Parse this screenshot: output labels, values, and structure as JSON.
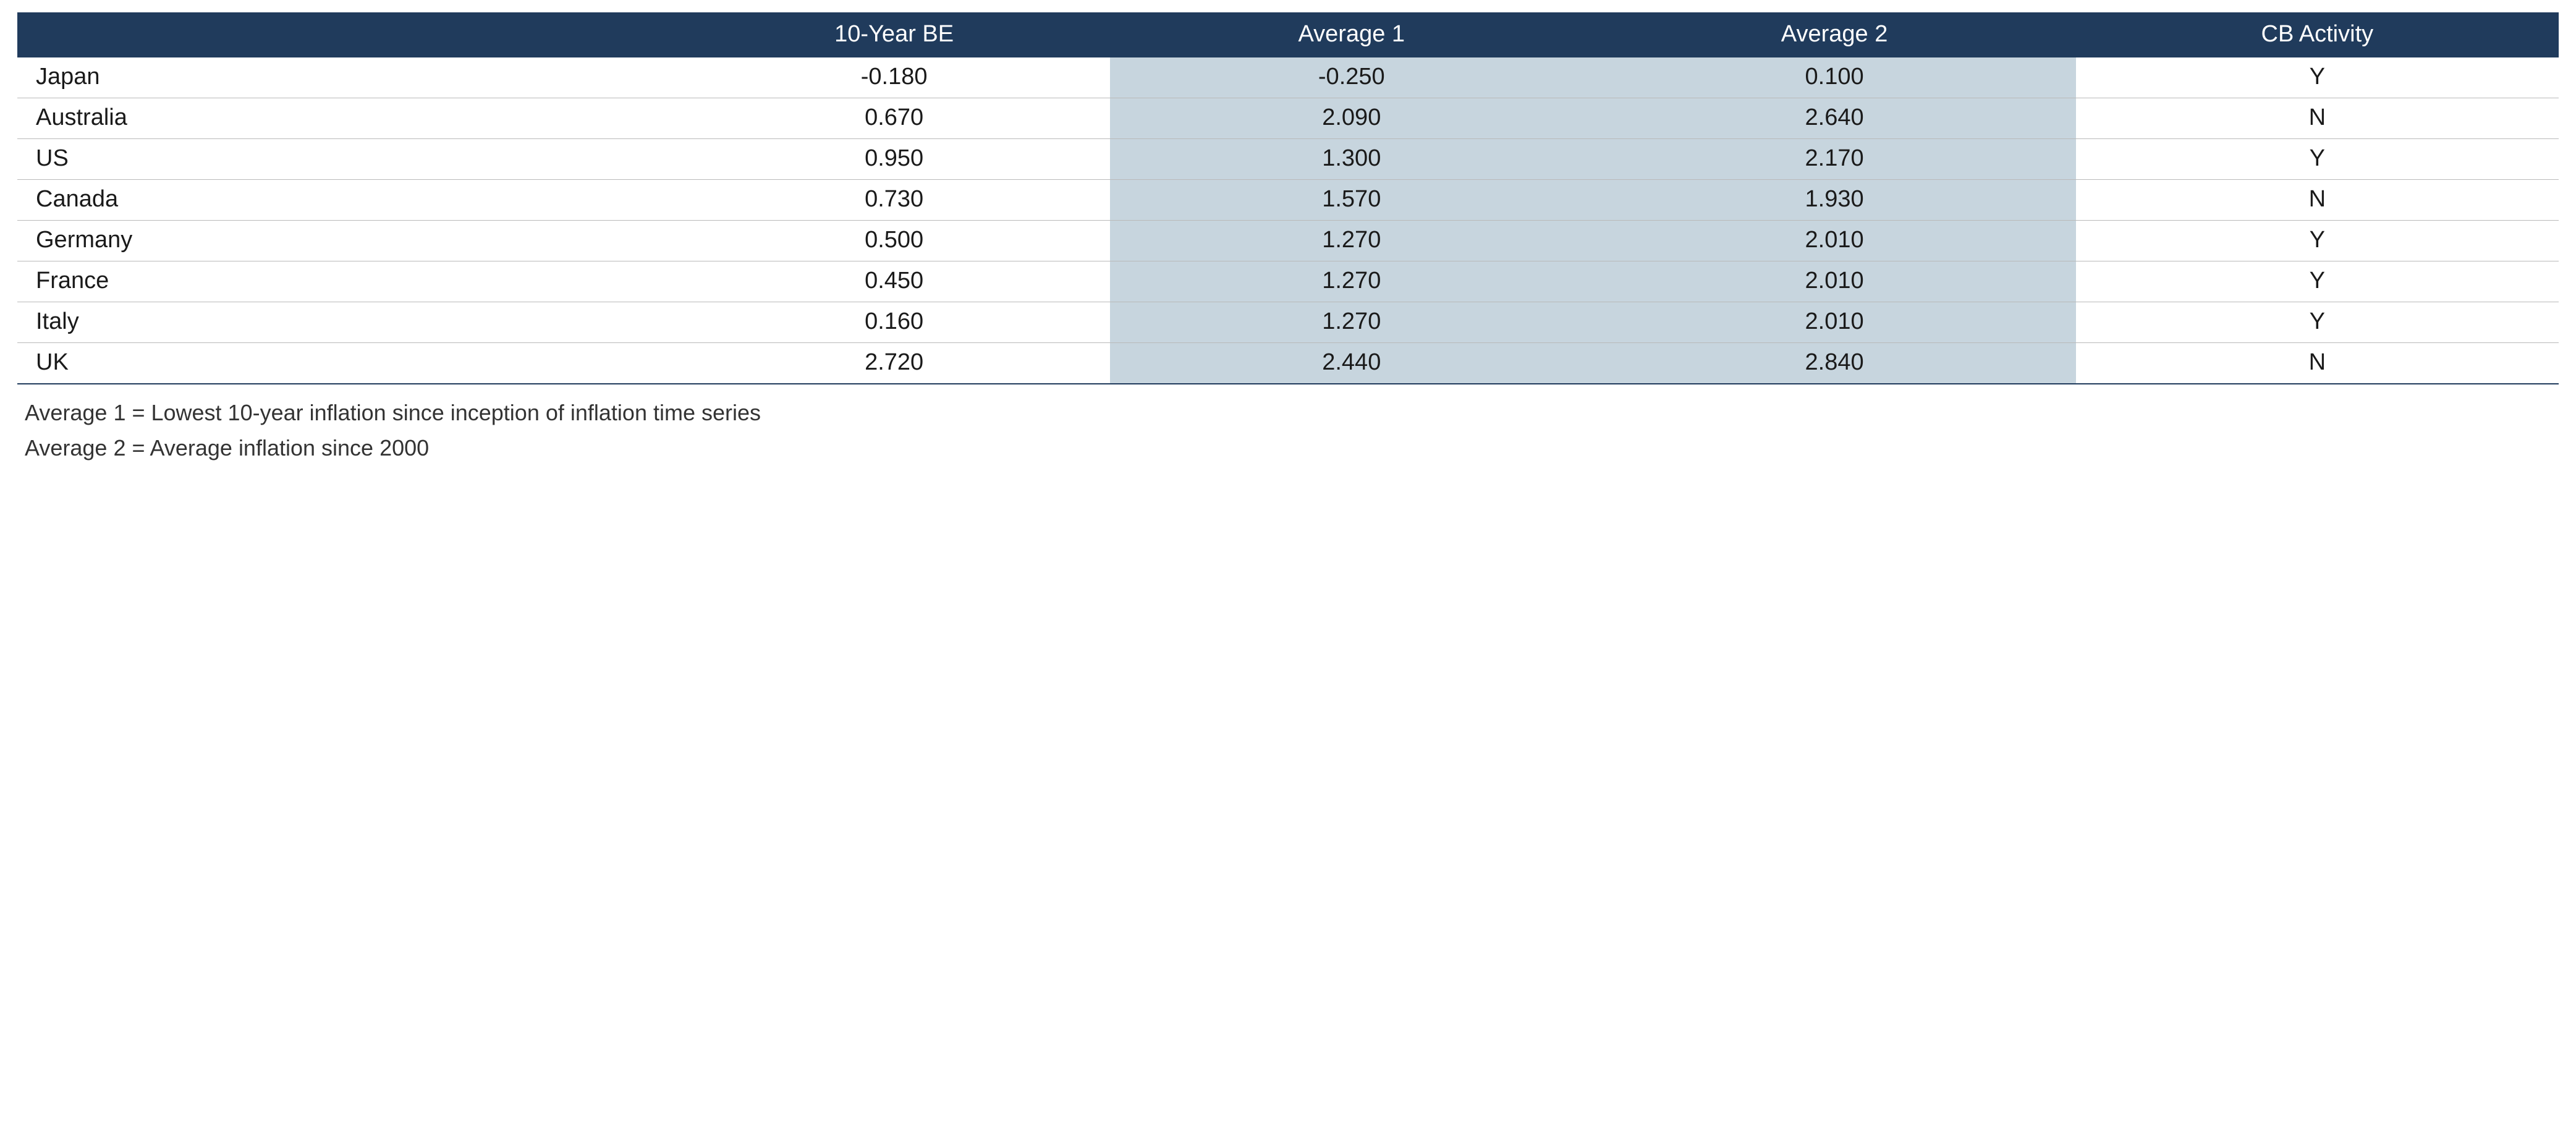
{
  "colors": {
    "header_bg": "#203b5c",
    "header_text": "#ffffff",
    "row_text": "#1a1a1a",
    "row_border": "#b9b9b9",
    "last_row_border": "#203b5c",
    "highlight_bg": "#c7d5de",
    "footnote_text": "#333333"
  },
  "table": {
    "columns": [
      {
        "key": "country",
        "label": "",
        "highlight": false
      },
      {
        "key": "be10",
        "label": "10-Year BE",
        "highlight": false
      },
      {
        "key": "avg1",
        "label": "Average 1",
        "highlight": true
      },
      {
        "key": "avg2",
        "label": "Average 2",
        "highlight": true
      },
      {
        "key": "cb",
        "label": "CB Activity",
        "highlight": false
      }
    ],
    "rows": [
      {
        "country": "Japan",
        "be10": "-0.180",
        "avg1": "-0.250",
        "avg2": "0.100",
        "cb": "Y"
      },
      {
        "country": "Australia",
        "be10": "0.670",
        "avg1": "2.090",
        "avg2": "2.640",
        "cb": "N"
      },
      {
        "country": "US",
        "be10": "0.950",
        "avg1": "1.300",
        "avg2": "2.170",
        "cb": "Y"
      },
      {
        "country": "Canada",
        "be10": "0.730",
        "avg1": "1.570",
        "avg2": "1.930",
        "cb": "N"
      },
      {
        "country": "Germany",
        "be10": "0.500",
        "avg1": "1.270",
        "avg2": "2.010",
        "cb": "Y"
      },
      {
        "country": "France",
        "be10": "0.450",
        "avg1": "1.270",
        "avg2": "2.010",
        "cb": "Y"
      },
      {
        "country": "Italy",
        "be10": "0.160",
        "avg1": "1.270",
        "avg2": "2.010",
        "cb": "Y"
      },
      {
        "country": "UK",
        "be10": "2.720",
        "avg1": "2.440",
        "avg2": "2.840",
        "cb": "N"
      }
    ]
  },
  "footnotes": {
    "line1": "Average 1 = Lowest 10-year inflation since inception of inflation time series",
    "line2": "Average 2 = Average inflation since 2000"
  }
}
